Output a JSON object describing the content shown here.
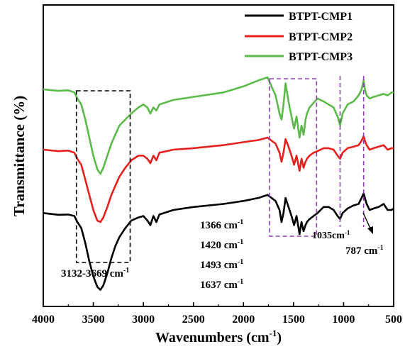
{
  "chart_data": {
    "type": "line",
    "xlabel": "Wavenumbers (cm",
    "xlabel_sup": "-1",
    "xlabel_close": ")",
    "ylabel": "Transmittance (%)",
    "xlim": [
      4000,
      500
    ],
    "x_reversed": true,
    "xticks": [
      4000,
      3500,
      3000,
      2500,
      2000,
      1500,
      1000,
      500
    ],
    "yticks_shown": false,
    "grid": false,
    "legend_position": "top-right",
    "series": [
      {
        "name": "BTPT-CMP1",
        "color": "#000000",
        "points": [
          [
            4000,
            69
          ],
          [
            3850,
            69.6
          ],
          [
            3750,
            69.5
          ],
          [
            3690,
            70
          ],
          [
            3660,
            72
          ],
          [
            3620,
            74
          ],
          [
            3580,
            79
          ],
          [
            3540,
            85
          ],
          [
            3500,
            90
          ],
          [
            3460,
            93.5
          ],
          [
            3430,
            94.5
          ],
          [
            3400,
            93
          ],
          [
            3360,
            89
          ],
          [
            3320,
            84
          ],
          [
            3280,
            80
          ],
          [
            3240,
            77
          ],
          [
            3180,
            74
          ],
          [
            3120,
            71.5
          ],
          [
            3050,
            70.5
          ],
          [
            3000,
            70
          ],
          [
            2960,
            71.5
          ],
          [
            2930,
            73
          ],
          [
            2900,
            70
          ],
          [
            2870,
            72
          ],
          [
            2840,
            69.5
          ],
          [
            2700,
            68
          ],
          [
            2500,
            67
          ],
          [
            2200,
            66
          ],
          [
            2000,
            65
          ],
          [
            1850,
            64
          ],
          [
            1760,
            63
          ],
          [
            1720,
            64
          ],
          [
            1680,
            65
          ],
          [
            1640,
            68
          ],
          [
            1620,
            72
          ],
          [
            1600,
            69
          ],
          [
            1580,
            64
          ],
          [
            1550,
            67
          ],
          [
            1520,
            70
          ],
          [
            1495,
            73
          ],
          [
            1470,
            70
          ],
          [
            1440,
            76
          ],
          [
            1420,
            72
          ],
          [
            1400,
            75
          ],
          [
            1380,
            73
          ],
          [
            1366,
            72
          ],
          [
            1340,
            71
          ],
          [
            1300,
            70
          ],
          [
            1260,
            69
          ],
          [
            1200,
            67
          ],
          [
            1150,
            67
          ],
          [
            1100,
            68
          ],
          [
            1060,
            70
          ],
          [
            1035,
            71
          ],
          [
            1010,
            69
          ],
          [
            960,
            67.5
          ],
          [
            900,
            66.5
          ],
          [
            850,
            66
          ],
          [
            820,
            64
          ],
          [
            800,
            62.5
          ],
          [
            787,
            64
          ],
          [
            770,
            66
          ],
          [
            740,
            68
          ],
          [
            700,
            67.5
          ],
          [
            650,
            67
          ],
          [
            600,
            66
          ],
          [
            560,
            68
          ],
          [
            520,
            68
          ],
          [
            500,
            67.5
          ]
        ]
      },
      {
        "name": "BTPT-CMP2",
        "color": "#e8201d",
        "points": [
          [
            4000,
            48
          ],
          [
            3850,
            48.5
          ],
          [
            3750,
            48.3
          ],
          [
            3690,
            49
          ],
          [
            3660,
            51
          ],
          [
            3620,
            53
          ],
          [
            3580,
            58
          ],
          [
            3540,
            63
          ],
          [
            3500,
            68
          ],
          [
            3460,
            71.5
          ],
          [
            3430,
            72
          ],
          [
            3400,
            70.5
          ],
          [
            3360,
            67
          ],
          [
            3320,
            63
          ],
          [
            3280,
            60
          ],
          [
            3240,
            57
          ],
          [
            3180,
            54
          ],
          [
            3120,
            51.5
          ],
          [
            3050,
            50
          ],
          [
            3000,
            50
          ],
          [
            2960,
            51
          ],
          [
            2930,
            52.5
          ],
          [
            2900,
            50
          ],
          [
            2870,
            51.5
          ],
          [
            2840,
            49
          ],
          [
            2700,
            48
          ],
          [
            2500,
            47.5
          ],
          [
            2200,
            46.5
          ],
          [
            2000,
            45.5
          ],
          [
            1850,
            44.8
          ],
          [
            1760,
            44
          ],
          [
            1720,
            45
          ],
          [
            1680,
            46
          ],
          [
            1640,
            49
          ],
          [
            1620,
            52
          ],
          [
            1600,
            49
          ],
          [
            1580,
            44.5
          ],
          [
            1550,
            47
          ],
          [
            1520,
            50
          ],
          [
            1495,
            53
          ],
          [
            1470,
            50
          ],
          [
            1440,
            55
          ],
          [
            1420,
            51
          ],
          [
            1400,
            54
          ],
          [
            1380,
            52
          ],
          [
            1366,
            51
          ],
          [
            1340,
            50
          ],
          [
            1300,
            49
          ],
          [
            1260,
            48.5
          ],
          [
            1200,
            47.5
          ],
          [
            1150,
            47.5
          ],
          [
            1100,
            48
          ],
          [
            1060,
            50
          ],
          [
            1035,
            51
          ],
          [
            1010,
            49
          ],
          [
            960,
            47.5
          ],
          [
            900,
            47
          ],
          [
            850,
            46.5
          ],
          [
            820,
            45
          ],
          [
            800,
            43.5
          ],
          [
            787,
            45
          ],
          [
            770,
            46.5
          ],
          [
            740,
            48
          ],
          [
            700,
            47.5
          ],
          [
            650,
            47
          ],
          [
            600,
            46.5
          ],
          [
            560,
            48
          ],
          [
            520,
            47.5
          ],
          [
            500,
            47.5
          ]
        ]
      },
      {
        "name": "BTPT-CMP3",
        "color": "#5cba4a",
        "points": [
          [
            4000,
            28
          ],
          [
            3850,
            28.5
          ],
          [
            3750,
            28.3
          ],
          [
            3690,
            29
          ],
          [
            3660,
            31
          ],
          [
            3620,
            33
          ],
          [
            3580,
            38
          ],
          [
            3540,
            44
          ],
          [
            3500,
            50
          ],
          [
            3460,
            54.5
          ],
          [
            3430,
            56
          ],
          [
            3400,
            54
          ],
          [
            3360,
            50
          ],
          [
            3320,
            46
          ],
          [
            3280,
            43
          ],
          [
            3240,
            40
          ],
          [
            3180,
            38
          ],
          [
            3120,
            36
          ],
          [
            3050,
            34
          ],
          [
            3000,
            33
          ],
          [
            2960,
            34
          ],
          [
            2930,
            36
          ],
          [
            2900,
            34
          ],
          [
            2870,
            35
          ],
          [
            2840,
            33
          ],
          [
            2700,
            31.5
          ],
          [
            2500,
            30.5
          ],
          [
            2200,
            29
          ],
          [
            2000,
            27
          ],
          [
            1850,
            25
          ],
          [
            1760,
            24
          ],
          [
            1720,
            27
          ],
          [
            1680,
            30
          ],
          [
            1640,
            36
          ],
          [
            1620,
            38
          ],
          [
            1600,
            33
          ],
          [
            1580,
            26
          ],
          [
            1550,
            32
          ],
          [
            1520,
            37
          ],
          [
            1495,
            41
          ],
          [
            1470,
            37
          ],
          [
            1440,
            44
          ],
          [
            1420,
            40
          ],
          [
            1400,
            43
          ],
          [
            1380,
            38
          ],
          [
            1366,
            36
          ],
          [
            1340,
            34
          ],
          [
            1300,
            32.5
          ],
          [
            1260,
            31
          ],
          [
            1200,
            32
          ],
          [
            1150,
            33
          ],
          [
            1100,
            34
          ],
          [
            1060,
            37
          ],
          [
            1035,
            40
          ],
          [
            1010,
            36
          ],
          [
            960,
            33
          ],
          [
            900,
            32
          ],
          [
            850,
            30
          ],
          [
            820,
            28
          ],
          [
            800,
            25
          ],
          [
            787,
            28
          ],
          [
            770,
            30
          ],
          [
            740,
            31
          ],
          [
            700,
            30.5
          ],
          [
            650,
            30
          ],
          [
            600,
            29.5
          ],
          [
            560,
            30
          ],
          [
            520,
            29
          ],
          [
            500,
            29
          ]
        ]
      }
    ],
    "annotations": [
      {
        "id": "range_oh",
        "text": "3132-3669 cm",
        "sup": "-1",
        "box": [
          3669,
          3132
        ],
        "box_color": "#000000"
      },
      {
        "id": "peak_1366",
        "text": "1366 cm",
        "sup": "-1"
      },
      {
        "id": "peak_1420",
        "text": "1420 cm",
        "sup": "-1"
      },
      {
        "id": "peak_1493",
        "text": "1493 cm",
        "sup": "-1"
      },
      {
        "id": "peak_1637",
        "text": "1637 cm",
        "sup": "-1"
      },
      {
        "id": "peak_1035",
        "text": "1035cm",
        "sup": "-1"
      },
      {
        "id": "peak_787",
        "text": "787 cm",
        "sup": "-1"
      }
    ],
    "highlight_boxes": [
      {
        "id": "box_fingerprint",
        "range": [
          1740,
          1270
        ],
        "color": "#8e3fb1"
      },
      {
        "id": "box_1035",
        "range": [
          1035,
          1035
        ],
        "color": "#8e3fb1"
      },
      {
        "id": "box_787",
        "range": [
          800,
          800
        ],
        "color": "#8e3fb1"
      }
    ]
  }
}
